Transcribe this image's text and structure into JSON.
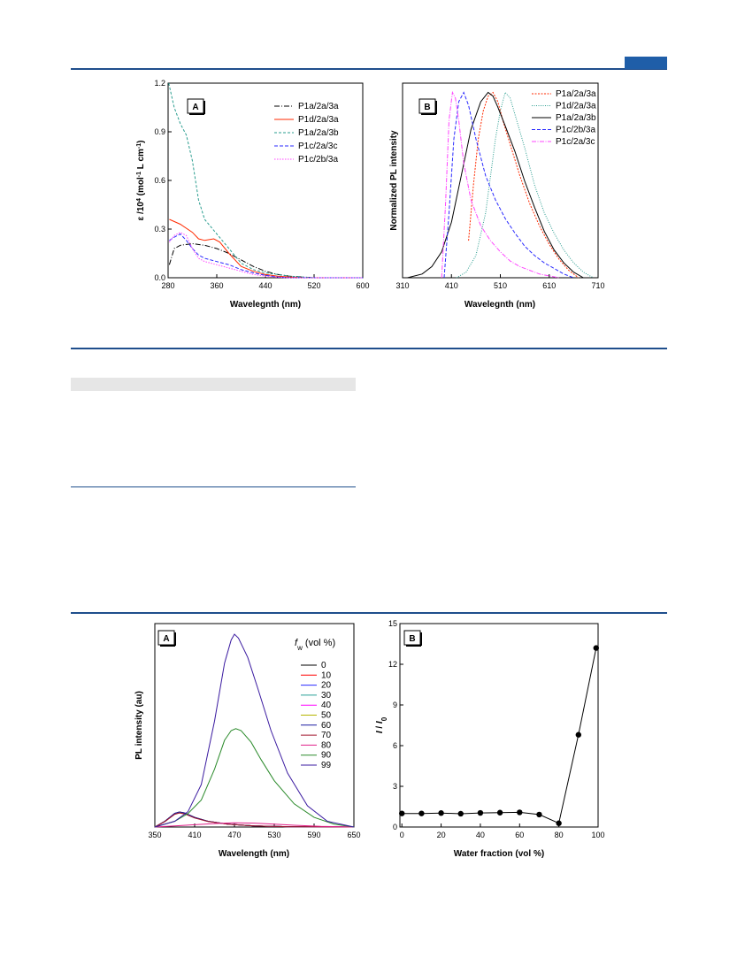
{
  "figure1": {
    "panelA": {
      "panel_label": "A",
      "xlabel": "Wavelegnth (nm)",
      "ylabel_parts": [
        "ε /10",
        "4",
        " (mol",
        "-1",
        " L cm",
        "-1",
        ")"
      ],
      "xticks": [
        "280",
        "360",
        "440",
        "520",
        "600"
      ],
      "yticks": [
        "0.0",
        "0.3",
        "0.6",
        "0.9",
        "1.2"
      ],
      "legend": [
        "P1a/2a/3a",
        "P1d/2a/3a",
        "P1a/2a/3b",
        "P1c/2a/3c",
        "P1c/2b/3a"
      ],
      "colors": [
        "#000000",
        "#ff2a00",
        "#2a9d8f",
        "#2a2aff",
        "#ff44ff"
      ]
    },
    "panelB": {
      "panel_label": "B",
      "xlabel": "Wavelegnth (nm)",
      "ylabel": "Normalized PL intensity",
      "xticks": [
        "310",
        "410",
        "510",
        "610",
        "710"
      ],
      "legend": [
        "P1a/2a/3a",
        "P1d/2a/3a",
        "P1a/2a/3b",
        "P1c/2b/3a",
        "P1c/2a/3c"
      ],
      "colors": [
        "#ff2a00",
        "#2a9d8f",
        "#000000",
        "#2a2aff",
        "#ff44ff"
      ]
    }
  },
  "figure2": {
    "panelA": {
      "panel_label": "A",
      "xlabel": "Wavelength (nm)",
      "ylabel": "PL intensity (au)",
      "legend_title_var": "f",
      "legend_title_sub": "w",
      "legend_title_rest": " (vol %)",
      "xticks": [
        "350",
        "410",
        "470",
        "530",
        "590",
        "650"
      ],
      "legend": [
        "0",
        "10",
        "20",
        "30",
        "40",
        "50",
        "60",
        "70",
        "80",
        "90",
        "99"
      ],
      "colors": [
        "#000000",
        "#ff0000",
        "#2a2aff",
        "#2aa198",
        "#ff00ff",
        "#b5b500",
        "#1a1aa0",
        "#a0142a",
        "#e0208a",
        "#2a8a2a",
        "#3a1aa0"
      ]
    },
    "panelB": {
      "panel_label": "B",
      "xlabel": "Water fraction (vol %)",
      "ylabel_main": "I",
      "ylabel_sep": " / ",
      "ylabel_den": "I",
      "ylabel_sub": "0",
      "xticks": [
        "0",
        "20",
        "40",
        "60",
        "80",
        "100"
      ],
      "yticks": [
        "0",
        "3",
        "6",
        "9",
        "12",
        "15"
      ]
    }
  },
  "chart_data": [
    {
      "type": "line",
      "panel": "Figure 1 A",
      "xlabel": "Wavelegnth (nm)",
      "ylabel": "ε /10^4 (mol-1 L cm-1)",
      "xlim": [
        280,
        600
      ],
      "ylim": [
        0,
        1.2
      ],
      "series": [
        {
          "name": "P1a/2a/3a",
          "x": [
            282,
            290,
            300,
            320,
            340,
            360,
            380,
            400,
            420,
            440,
            460,
            480,
            500,
            520,
            560,
            600
          ],
          "y": [
            0.08,
            0.18,
            0.2,
            0.21,
            0.2,
            0.18,
            0.15,
            0.11,
            0.07,
            0.04,
            0.02,
            0.01,
            0.005,
            0.0,
            0.0,
            0.0
          ]
        },
        {
          "name": "P1d/2a/3a",
          "x": [
            282,
            300,
            320,
            330,
            340,
            355,
            365,
            380,
            400,
            420,
            440,
            460,
            480,
            500,
            520,
            560,
            600
          ],
          "y": [
            0.36,
            0.33,
            0.28,
            0.24,
            0.23,
            0.24,
            0.22,
            0.15,
            0.07,
            0.04,
            0.02,
            0.01,
            0.005,
            0.0,
            0.0,
            0.0,
            0.0
          ]
        },
        {
          "name": "P1a/2a/3b",
          "x": [
            281,
            290,
            300,
            310,
            320,
            330,
            340,
            360,
            380,
            400,
            420,
            440,
            460,
            480,
            500,
            520,
            560,
            600
          ],
          "y": [
            1.2,
            1.05,
            0.95,
            0.88,
            0.72,
            0.48,
            0.36,
            0.27,
            0.18,
            0.09,
            0.05,
            0.03,
            0.02,
            0.01,
            0.005,
            0.0,
            0.0,
            0.0
          ]
        },
        {
          "name": "P1c/2a/3c",
          "x": [
            282,
            290,
            300,
            310,
            320,
            330,
            340,
            360,
            380,
            400,
            420,
            440,
            460,
            480,
            520,
            600
          ],
          "y": [
            0.23,
            0.25,
            0.27,
            0.23,
            0.18,
            0.14,
            0.12,
            0.1,
            0.08,
            0.05,
            0.03,
            0.015,
            0.005,
            0.0,
            0.0,
            0.0
          ]
        },
        {
          "name": "P1c/2b/3a",
          "x": [
            282,
            290,
            300,
            310,
            320,
            330,
            340,
            360,
            380,
            400,
            420,
            440,
            460,
            480,
            520,
            600
          ],
          "y": [
            0.22,
            0.26,
            0.28,
            0.26,
            0.18,
            0.12,
            0.1,
            0.08,
            0.06,
            0.04,
            0.02,
            0.01,
            0.003,
            0.0,
            0.0,
            0.0
          ]
        }
      ]
    },
    {
      "type": "line",
      "panel": "Figure 1 B",
      "xlabel": "Wavelegnth (nm)",
      "ylabel": "Normalized PL intensity",
      "xlim": [
        310,
        710
      ],
      "ylim": [
        0,
        1.05
      ],
      "series": [
        {
          "name": "P1a/2a/3a",
          "x": [
            445,
            455,
            465,
            475,
            485,
            495,
            505,
            515,
            530,
            550,
            570,
            590,
            610,
            630,
            650,
            670
          ],
          "y": [
            0.2,
            0.5,
            0.75,
            0.9,
            0.98,
            1.0,
            0.95,
            0.85,
            0.72,
            0.55,
            0.4,
            0.28,
            0.18,
            0.1,
            0.04,
            0.0
          ]
        },
        {
          "name": "P1d/2a/3a",
          "x": [
            420,
            440,
            460,
            480,
            500,
            510,
            520,
            530,
            540,
            560,
            580,
            600,
            620,
            640,
            660,
            680,
            700
          ],
          "y": [
            0.0,
            0.03,
            0.12,
            0.35,
            0.75,
            0.9,
            1.0,
            0.97,
            0.88,
            0.7,
            0.5,
            0.35,
            0.24,
            0.15,
            0.08,
            0.03,
            0.0
          ]
        },
        {
          "name": "P1a/2a/3b",
          "x": [
            320,
            350,
            370,
            390,
            410,
            430,
            450,
            470,
            485,
            495,
            505,
            520,
            540,
            560,
            580,
            600,
            620,
            640,
            660,
            680
          ],
          "y": [
            0.0,
            0.02,
            0.06,
            0.14,
            0.3,
            0.55,
            0.8,
            0.95,
            1.0,
            0.98,
            0.92,
            0.82,
            0.68,
            0.52,
            0.38,
            0.25,
            0.15,
            0.08,
            0.03,
            0.0
          ]
        },
        {
          "name": "P1c/2b/3a",
          "x": [
            395,
            405,
            415,
            425,
            435,
            445,
            460,
            480,
            500,
            520,
            540,
            560,
            580,
            600,
            620,
            640,
            660
          ],
          "y": [
            0.0,
            0.35,
            0.75,
            0.95,
            1.0,
            0.93,
            0.75,
            0.55,
            0.42,
            0.32,
            0.24,
            0.17,
            0.12,
            0.08,
            0.05,
            0.02,
            0.0
          ]
        },
        {
          "name": "P1c/2a/3c",
          "x": [
            390,
            398,
            405,
            412,
            418,
            425,
            435,
            450,
            470,
            490,
            510,
            530,
            550,
            570,
            590,
            610,
            630
          ],
          "y": [
            0.0,
            0.4,
            0.85,
            1.0,
            0.97,
            0.85,
            0.62,
            0.42,
            0.28,
            0.2,
            0.14,
            0.09,
            0.06,
            0.04,
            0.02,
            0.01,
            0.0
          ]
        }
      ]
    },
    {
      "type": "line",
      "panel": "Figure 2 A",
      "xlabel": "Wavelength (nm)",
      "ylabel": "PL intensity (au)",
      "xlim": [
        350,
        650
      ],
      "ylim": [
        0,
        100
      ],
      "series": [
        {
          "name": "0",
          "x": [
            350,
            365,
            380,
            387,
            395,
            410,
            430,
            460,
            500,
            550,
            650
          ],
          "y": [
            0,
            3,
            7,
            7.8,
            7.3,
            5,
            3,
            1.5,
            0.6,
            0.2,
            0
          ]
        },
        {
          "name": "10",
          "x": [
            350,
            365,
            380,
            387,
            395,
            410,
            430,
            460,
            500,
            550,
            650
          ],
          "y": [
            0,
            3,
            7,
            7.7,
            7.2,
            5,
            3,
            1.5,
            0.6,
            0.2,
            0
          ]
        },
        {
          "name": "20",
          "x": [
            350,
            365,
            380,
            387,
            395,
            410,
            430,
            460,
            500,
            550,
            650
          ],
          "y": [
            0,
            3,
            6.9,
            7.6,
            7.1,
            4.9,
            3,
            1.5,
            0.6,
            0.2,
            0
          ]
        },
        {
          "name": "30",
          "x": [
            350,
            365,
            380,
            387,
            395,
            410,
            430,
            460,
            500,
            550,
            650
          ],
          "y": [
            0,
            3,
            6.8,
            7.5,
            7,
            4.9,
            3,
            1.5,
            0.6,
            0.2,
            0
          ]
        },
        {
          "name": "40",
          "x": [
            350,
            365,
            380,
            387,
            395,
            410,
            430,
            460,
            500,
            550,
            650
          ],
          "y": [
            0,
            2.9,
            6.9,
            7.6,
            7.1,
            4.9,
            3,
            1.5,
            0.6,
            0.2,
            0
          ]
        },
        {
          "name": "50",
          "x": [
            350,
            365,
            380,
            387,
            395,
            410,
            430,
            460,
            500,
            550,
            650
          ],
          "y": [
            0,
            3,
            7,
            7.7,
            7.2,
            5,
            3,
            1.5,
            0.6,
            0.2,
            0
          ]
        },
        {
          "name": "60",
          "x": [
            350,
            365,
            380,
            387,
            395,
            410,
            430,
            460,
            500,
            550,
            650
          ],
          "y": [
            0,
            3,
            7.1,
            7.8,
            7.3,
            5,
            3,
            1.5,
            0.6,
            0.2,
            0
          ]
        },
        {
          "name": "70",
          "x": [
            350,
            365,
            380,
            387,
            395,
            410,
            430,
            460,
            500,
            550,
            650
          ],
          "y": [
            0,
            2.8,
            6.6,
            7.3,
            6.8,
            4.7,
            2.9,
            1.4,
            0.6,
            0.2,
            0
          ]
        },
        {
          "name": "80",
          "x": [
            350,
            380,
            410,
            440,
            470,
            500,
            530,
            560,
            600,
            650
          ],
          "y": [
            0,
            0.6,
            1.2,
            1.8,
            2.2,
            2.0,
            1.5,
            0.9,
            0.3,
            0
          ]
        },
        {
          "name": "90",
          "x": [
            350,
            380,
            400,
            420,
            440,
            455,
            465,
            472,
            480,
            495,
            510,
            530,
            560,
            590,
            620,
            650
          ],
          "y": [
            0,
            3,
            7,
            14,
            30,
            45,
            50,
            51,
            50,
            44,
            35,
            24,
            12,
            5,
            1.5,
            0
          ]
        },
        {
          "name": "99",
          "x": [
            350,
            380,
            400,
            420,
            440,
            455,
            465,
            470,
            476,
            490,
            505,
            525,
            550,
            580,
            610,
            650
          ],
          "y": [
            0,
            3,
            8,
            22,
            55,
            85,
            97,
            100,
            98,
            88,
            72,
            50,
            28,
            11,
            3,
            0
          ]
        }
      ]
    },
    {
      "type": "scatter",
      "panel": "Figure 2 B",
      "xlabel": "Water fraction (vol %)",
      "ylabel": "I / I0",
      "xlim": [
        -1,
        100
      ],
      "ylim": [
        0,
        15
      ],
      "x": [
        0,
        10,
        20,
        30,
        40,
        50,
        60,
        70,
        80,
        90,
        99
      ],
      "y": [
        1.0,
        1.0,
        1.03,
        0.98,
        1.04,
        1.06,
        1.08,
        0.92,
        0.28,
        6.8,
        13.2
      ]
    }
  ]
}
